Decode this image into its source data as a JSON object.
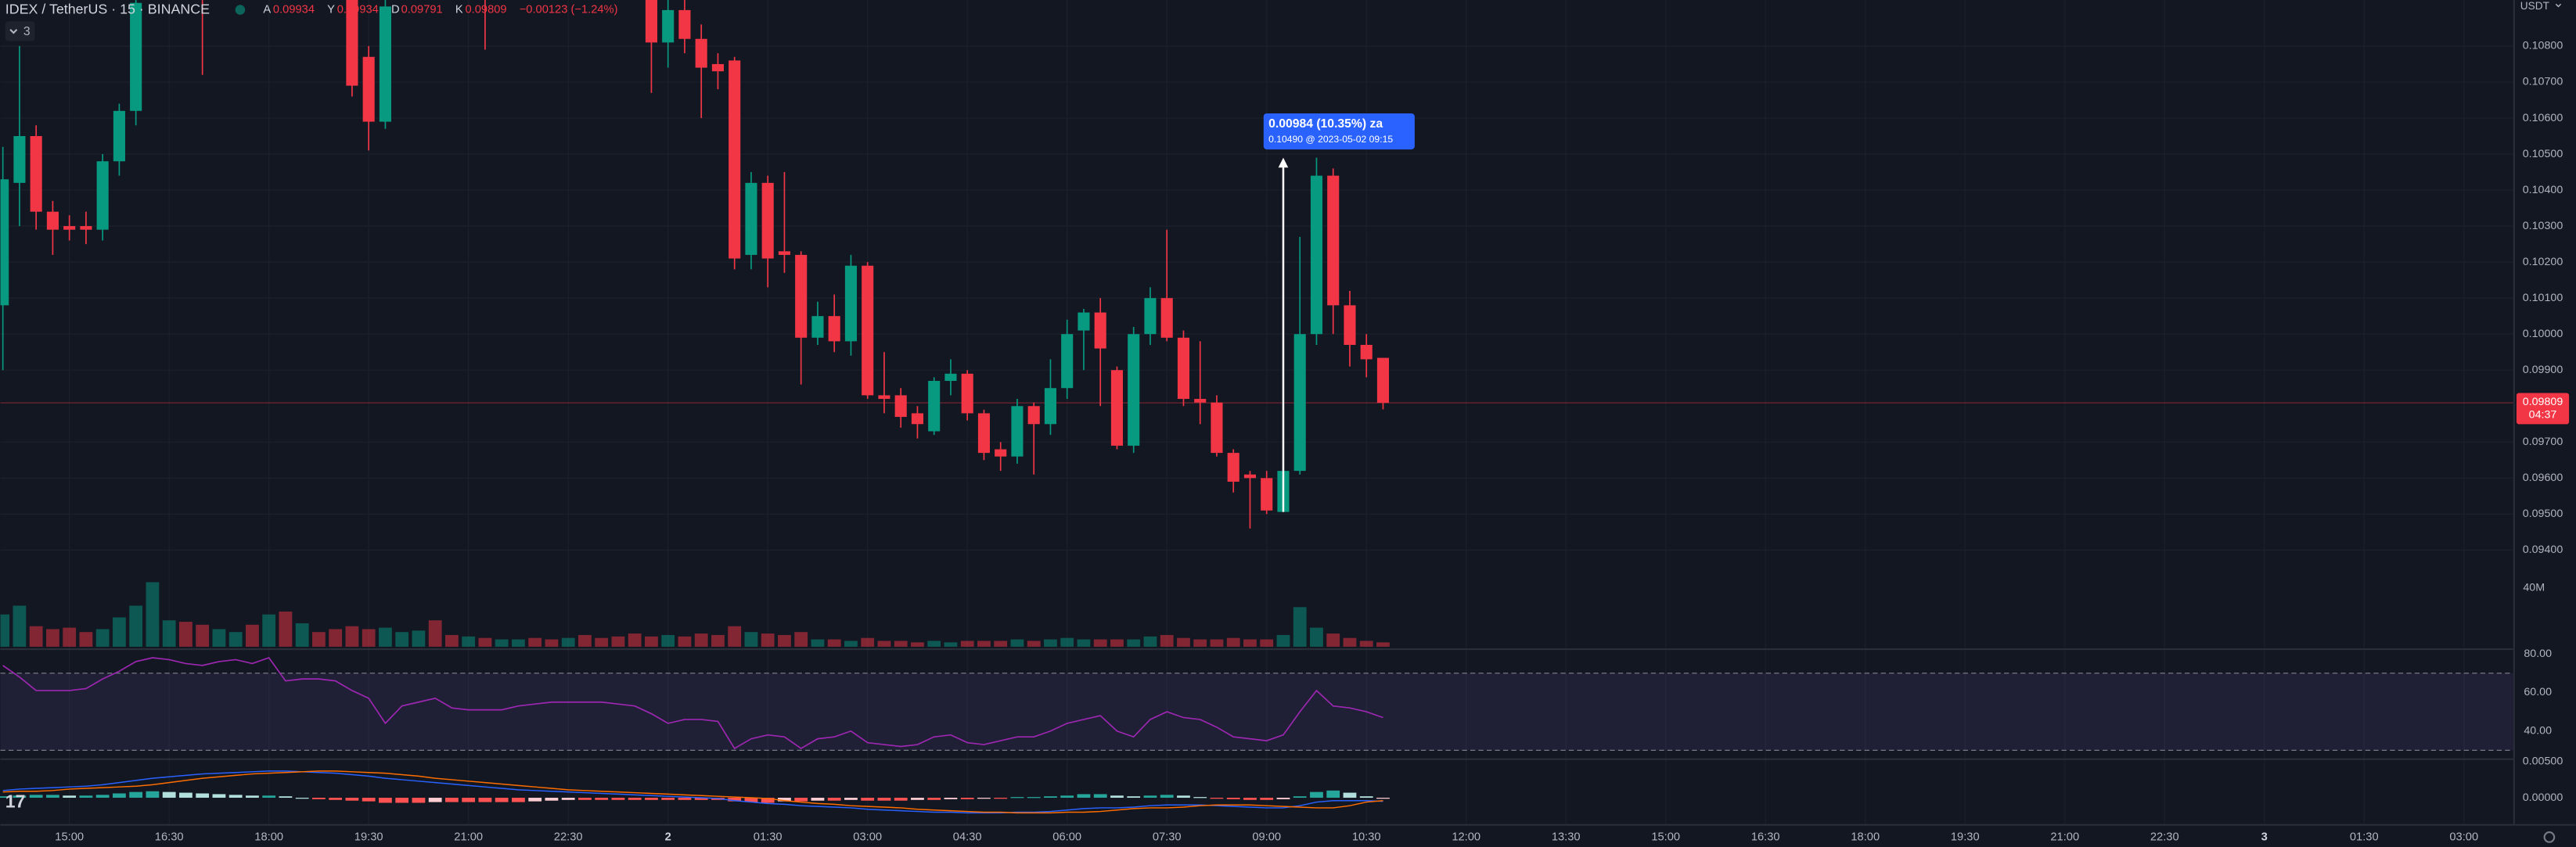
{
  "header": {
    "symbol": "IDEX / TetherUS · 15 · BINANCE",
    "indicators": "3",
    "ohlc": [
      {
        "key": "A",
        "value": "0.09934"
      },
      {
        "key": "Y",
        "value": "0.09934"
      },
      {
        "key": "D",
        "value": "0.09791"
      },
      {
        "key": "K",
        "value": "0.09809"
      }
    ],
    "change": "−0.00123 (−1.24%)"
  },
  "chart_data": [
    {
      "type": "candlestick",
      "unit": "USDT",
      "up_color": "#089981",
      "down_color": "#f23645",
      "grid": true,
      "open": [
        0.1008,
        0.1042,
        0.1055,
        0.1034,
        0.103,
        0.103,
        0.1029,
        0.1048,
        0.1062,
        0.1096,
        0.1105,
        0.1112,
        0.1108,
        0.1101,
        0.1109,
        0.112,
        0.1115,
        0.1124,
        0.1106,
        0.111,
        0.1103,
        0.11,
        0.1077,
        0.1059,
        0.1096,
        0.1102,
        0.1106,
        0.1103,
        0.11,
        0.1104,
        0.1098,
        0.1109,
        0.1114,
        0.1111,
        0.1106,
        0.111,
        0.1104,
        0.1101,
        0.1101,
        0.1098,
        0.1081,
        0.109,
        0.1082,
        0.1075,
        0.1076,
        0.1022,
        0.1042,
        0.1023,
        0.1022,
        0.0999,
        0.1005,
        0.0998,
        0.1019,
        0.0983,
        0.0983,
        0.0978,
        0.0973,
        0.0987,
        0.0989,
        0.0978,
        0.0968,
        0.0966,
        0.098,
        0.0975,
        0.0985,
        0.1001,
        0.1006,
        0.099,
        0.0969,
        0.1,
        0.101,
        0.0999,
        0.0982,
        0.0981,
        0.0967,
        0.0961,
        0.096,
        0.09506,
        0.0962,
        0.1,
        0.1044,
        0.1008,
        0.0997,
        0.09934
      ],
      "high": [
        0.1052,
        0.108,
        0.1058,
        0.1037,
        0.1033,
        0.1034,
        0.105,
        0.1064,
        0.11,
        0.111,
        0.1118,
        0.112,
        0.1115,
        0.1112,
        0.1125,
        0.113,
        0.1128,
        0.1126,
        0.1114,
        0.1116,
        0.1108,
        0.1105,
        0.108,
        0.11,
        0.1106,
        0.111,
        0.1114,
        0.1108,
        0.1107,
        0.1108,
        0.1112,
        0.1118,
        0.112,
        0.1116,
        0.1113,
        0.1115,
        0.111,
        0.1106,
        0.1108,
        0.11,
        0.1095,
        0.1094,
        0.1086,
        0.1078,
        0.1077,
        0.1045,
        0.1044,
        0.1045,
        0.1023,
        0.1009,
        0.1011,
        0.1022,
        0.102,
        0.0995,
        0.0985,
        0.098,
        0.0988,
        0.0993,
        0.099,
        0.0979,
        0.097,
        0.0982,
        0.0981,
        0.0993,
        0.1004,
        0.1007,
        0.101,
        0.0991,
        0.1002,
        0.1013,
        0.1029,
        0.1001,
        0.0998,
        0.0983,
        0.0968,
        0.0962,
        0.0962,
        0.0963,
        0.1027,
        0.1049,
        0.1046,
        0.1012,
        0.1,
        0.09934
      ],
      "low": [
        0.099,
        0.103,
        0.1029,
        0.1022,
        0.1026,
        0.1025,
        0.1026,
        0.1044,
        0.1058,
        0.1094,
        0.11,
        0.1104,
        0.1072,
        0.1096,
        0.1105,
        0.1112,
        0.1108,
        0.1102,
        0.1098,
        0.11,
        0.1095,
        0.1066,
        0.1051,
        0.1057,
        0.1094,
        0.1097,
        0.11,
        0.1097,
        0.1095,
        0.1079,
        0.1095,
        0.1104,
        0.1108,
        0.1103,
        0.11,
        0.1102,
        0.1097,
        0.1095,
        0.1096,
        0.1067,
        0.1074,
        0.1078,
        0.106,
        0.1068,
        0.1018,
        0.1018,
        0.1013,
        0.1017,
        0.0986,
        0.0997,
        0.0995,
        0.0994,
        0.0982,
        0.0978,
        0.0974,
        0.0971,
        0.0972,
        0.0983,
        0.0976,
        0.0965,
        0.0962,
        0.0964,
        0.0961,
        0.0972,
        0.0982,
        0.099,
        0.098,
        0.0968,
        0.0967,
        0.0997,
        0.0998,
        0.098,
        0.0975,
        0.0966,
        0.0956,
        0.0946,
        0.095,
        0.09506,
        0.0961,
        0.0997,
        0.1,
        0.0991,
        0.0988,
        0.09791
      ],
      "close": [
        0.1043,
        0.1055,
        0.1034,
        0.1029,
        0.1029,
        0.1029,
        0.1048,
        0.1062,
        0.1092,
        0.1105,
        0.1112,
        0.1108,
        0.1101,
        0.1109,
        0.112,
        0.1115,
        0.1124,
        0.1106,
        0.111,
        0.1103,
        0.11,
        0.1069,
        0.1059,
        0.1091,
        0.1102,
        0.1106,
        0.1103,
        0.11,
        0.1104,
        0.1098,
        0.1109,
        0.1114,
        0.1111,
        0.1106,
        0.111,
        0.1104,
        0.1101,
        0.1098,
        0.1098,
        0.1081,
        0.109,
        0.1082,
        0.1074,
        0.1073,
        0.1021,
        0.1042,
        0.1021,
        0.1022,
        0.0999,
        0.1005,
        0.0998,
        0.1019,
        0.0983,
        0.0982,
        0.0977,
        0.0975,
        0.0987,
        0.0989,
        0.0978,
        0.0967,
        0.0966,
        0.098,
        0.0975,
        0.0985,
        0.1,
        0.1006,
        0.0996,
        0.0969,
        0.1,
        0.101,
        0.0999,
        0.0982,
        0.0981,
        0.0967,
        0.0959,
        0.096,
        0.0951,
        0.0962,
        0.1,
        0.1044,
        0.1008,
        0.0997,
        0.0993,
        0.09809
      ],
      "ylim": [
        0.09127,
        0.10928
      ],
      "yticks": [
        {
          "value": 0.108,
          "label": "0.10800"
        },
        {
          "value": 0.107,
          "label": "0.10700"
        },
        {
          "value": 0.106,
          "label": "0.10600"
        },
        {
          "value": 0.105,
          "label": "0.10500"
        },
        {
          "value": 0.104,
          "label": "0.10400"
        },
        {
          "value": 0.103,
          "label": "0.10300"
        },
        {
          "value": 0.102,
          "label": "0.10200"
        },
        {
          "value": 0.101,
          "label": "0.10100"
        },
        {
          "value": 0.1,
          "label": "0.10000"
        },
        {
          "value": 0.099,
          "label": "0.09900"
        },
        {
          "value": 0.097,
          "label": "0.09700"
        },
        {
          "value": 0.096,
          "label": "0.09600"
        },
        {
          "value": 0.095,
          "label": "0.09500"
        },
        {
          "value": 0.094,
          "label": "0.09400"
        }
      ],
      "xticks": [
        {
          "value": 4,
          "label": "15:00"
        },
        {
          "value": 10,
          "label": "16:30"
        },
        {
          "value": 16,
          "label": "18:00"
        },
        {
          "value": 22,
          "label": "19:30"
        },
        {
          "value": 28,
          "label": "21:00"
        },
        {
          "value": 34,
          "label": "22:30"
        },
        {
          "value": 40,
          "label": "2"
        },
        {
          "value": 46,
          "label": "01:30"
        },
        {
          "value": 52,
          "label": "03:00"
        },
        {
          "value": 58,
          "label": "04:30"
        },
        {
          "value": 64,
          "label": "06:00"
        },
        {
          "value": 70,
          "label": "07:30"
        },
        {
          "value": 76,
          "label": "09:00"
        },
        {
          "value": 82,
          "label": "10:30"
        },
        {
          "value": 88,
          "label": "12:00"
        },
        {
          "value": 94,
          "label": "13:30"
        },
        {
          "value": 100,
          "label": "15:00"
        },
        {
          "value": 106,
          "label": "16:30"
        },
        {
          "value": 112,
          "label": "18:00"
        },
        {
          "value": 118,
          "label": "19:30"
        },
        {
          "value": 124,
          "label": "21:00"
        },
        {
          "value": 130,
          "label": "22:30"
        },
        {
          "value": 136,
          "label": "3"
        },
        {
          "value": 142,
          "label": "01:30"
        },
        {
          "value": 148,
          "label": "03:00"
        }
      ],
      "last": {
        "value": 0.09809,
        "label": "0.09809",
        "countdown": "04:37"
      },
      "measure": {
        "from": 0.09506,
        "to": 0.1049,
        "text": "0.00984 (10.35%) za",
        "detail": "0.10490 @ 2023-05-02  09:15"
      }
    },
    {
      "type": "volume",
      "up_color": "rgba(8,153,129,0.5)",
      "down_color": "rgba(242,54,69,0.5)",
      "values": [
        22,
        28,
        14,
        12,
        13,
        10,
        12,
        20,
        28,
        44,
        18,
        17,
        15,
        12,
        10,
        15,
        22,
        24,
        16,
        10,
        12,
        14,
        12,
        13,
        10,
        11,
        18,
        8,
        7,
        6,
        5,
        5,
        6,
        5,
        6,
        8,
        6,
        7,
        9,
        7,
        8,
        7,
        9,
        8,
        14,
        10,
        9,
        8,
        10,
        5,
        5,
        4,
        6,
        4,
        4,
        3,
        4,
        3,
        4,
        4,
        4,
        5,
        4,
        5,
        6,
        5,
        5,
        5,
        5,
        7,
        8,
        6,
        5,
        5,
        6,
        5,
        5,
        8,
        27,
        13,
        9,
        6,
        4,
        3
      ],
      "ylim": [
        0,
        47
      ],
      "yticks": [
        {
          "value": 40,
          "label": "40M"
        }
      ]
    },
    {
      "type": "line",
      "color": "#9c27b0",
      "band_color": "rgba(126,87,194,0.12)",
      "bands": [
        70,
        30
      ],
      "values": [
        74,
        68,
        61,
        61,
        61,
        62,
        67,
        71,
        76,
        78,
        77,
        75,
        74,
        76,
        77,
        75,
        78,
        66,
        67,
        67,
        66,
        61,
        57,
        44,
        53,
        55,
        57,
        52,
        51,
        51,
        51,
        53,
        54,
        55,
        55,
        55,
        55,
        54,
        53,
        49,
        44,
        46,
        46,
        45,
        31,
        36,
        38,
        37,
        31,
        36,
        37,
        40,
        34,
        33,
        32,
        33,
        37,
        38,
        34,
        33,
        35,
        37,
        37,
        40,
        44,
        46,
        48,
        40,
        37,
        46,
        50,
        47,
        46,
        42,
        37,
        36,
        35,
        38,
        50,
        61,
        53,
        52,
        50,
        47
      ],
      "ylim": [
        25,
        82
      ],
      "yticks": [
        {
          "value": 80,
          "label": "80.00"
        },
        {
          "value": 60,
          "label": "60.00"
        },
        {
          "value": 40,
          "label": "40.00"
        }
      ]
    },
    {
      "type": "macd",
      "macd_color": "#2962ff",
      "signal_color": "#ff6d00",
      "macd": [
        0.001,
        0.0012,
        0.0013,
        0.0014,
        0.0015,
        0.0016,
        0.0018,
        0.0021,
        0.0024,
        0.0027,
        0.0029,
        0.0031,
        0.0033,
        0.0034,
        0.0035,
        0.0036,
        0.0037,
        0.0037,
        0.0036,
        0.0035,
        0.0034,
        0.0032,
        0.003,
        0.0027,
        0.0025,
        0.0023,
        0.0021,
        0.0019,
        0.0017,
        0.0015,
        0.0013,
        0.0011,
        0.001,
        0.0009,
        0.0008,
        0.0007,
        0.0006,
        0.0005,
        0.0004,
        0.0003,
        0.0002,
        0.0001,
        0.0,
        -0.0001,
        -0.0004,
        -0.0006,
        -0.0008,
        -0.0009,
        -0.0011,
        -0.0012,
        -0.0013,
        -0.0014,
        -0.0016,
        -0.0017,
        -0.0018,
        -0.0019,
        -0.002,
        -0.002,
        -0.0021,
        -0.0021,
        -0.0021,
        -0.002,
        -0.002,
        -0.0019,
        -0.0017,
        -0.0015,
        -0.0014,
        -0.0014,
        -0.0013,
        -0.0011,
        -0.001,
        -0.001,
        -0.001,
        -0.0011,
        -0.0012,
        -0.0013,
        -0.0014,
        -0.0014,
        -0.0011,
        -0.0006,
        -0.0004,
        -0.0004,
        -0.0004,
        -0.0005
      ],
      "signal": [
        0.0008,
        0.0009,
        0.0009,
        0.001,
        0.0012,
        0.0013,
        0.0014,
        0.0015,
        0.0016,
        0.0018,
        0.0021,
        0.0024,
        0.0027,
        0.0029,
        0.0031,
        0.0033,
        0.0034,
        0.0035,
        0.0036,
        0.0037,
        0.0037,
        0.0036,
        0.0035,
        0.0034,
        0.0032,
        0.003,
        0.0027,
        0.0025,
        0.0023,
        0.0021,
        0.0019,
        0.0017,
        0.0015,
        0.0013,
        0.0011,
        0.001,
        0.0009,
        0.0008,
        0.0007,
        0.0006,
        0.0005,
        0.0004,
        0.0003,
        0.0002,
        0.0001,
        0.0,
        -0.0001,
        -0.0004,
        -0.0006,
        -0.0008,
        -0.0009,
        -0.0011,
        -0.0012,
        -0.0013,
        -0.0014,
        -0.0016,
        -0.0017,
        -0.0018,
        -0.0019,
        -0.002,
        -0.002,
        -0.0021,
        -0.0021,
        -0.0021,
        -0.002,
        -0.002,
        -0.0019,
        -0.0017,
        -0.0015,
        -0.0014,
        -0.0014,
        -0.0013,
        -0.0011,
        -0.001,
        -0.001,
        -0.001,
        -0.0011,
        -0.0012,
        -0.0013,
        -0.0014,
        -0.0014,
        -0.0011,
        -0.0006,
        -0.0004
      ],
      "hist": [
        0.0002,
        0.0003,
        0.0004,
        0.0004,
        0.0003,
        0.0003,
        0.0004,
        0.0006,
        0.0008,
        0.0009,
        0.0008,
        0.0007,
        0.0006,
        0.0005,
        0.0004,
        0.0003,
        0.0003,
        0.0002,
        0.0,
        -0.0002,
        -0.0003,
        -0.0004,
        -0.0005,
        -0.0007,
        -0.0007,
        -0.0007,
        -0.0006,
        -0.0006,
        -0.0006,
        -0.0006,
        -0.0006,
        -0.0006,
        -0.0005,
        -0.0004,
        -0.0003,
        -0.0003,
        -0.0003,
        -0.0003,
        -0.0003,
        -0.0003,
        -0.0003,
        -0.0003,
        -0.0003,
        -0.0003,
        -0.0005,
        -0.0006,
        -0.0007,
        -0.0005,
        -0.0005,
        -0.0004,
        -0.0004,
        -0.0003,
        -0.0004,
        -0.0004,
        -0.0004,
        -0.0003,
        -0.0003,
        -0.0002,
        -0.0002,
        -0.0001,
        -0.0001,
        0.0001,
        0.0001,
        0.0002,
        0.0003,
        0.0005,
        0.0005,
        0.0003,
        0.0002,
        0.0003,
        0.0004,
        0.0003,
        0.0001,
        -0.0001,
        -0.0002,
        -0.0003,
        -0.0003,
        -0.0002,
        0.0002,
        0.0008,
        0.001,
        0.0007,
        0.0002,
        -0.0001
      ],
      "ylim": [
        -0.00364,
        0.00523
      ],
      "yticks": [
        {
          "value": 0.005,
          "label": "0.00500"
        },
        {
          "value": 0,
          "label": "0.00000"
        }
      ]
    }
  ]
}
